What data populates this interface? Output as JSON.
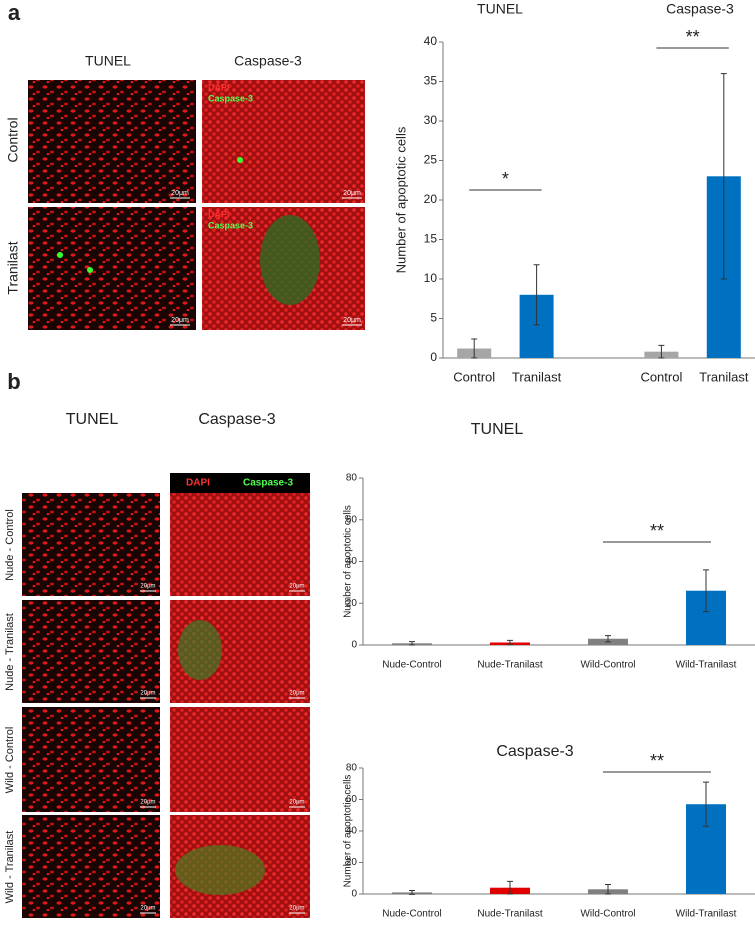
{
  "panel_a": {
    "label": "a",
    "columns": [
      "TUNEL",
      "Caspase-3"
    ],
    "rows": [
      "Control",
      "Tranilast"
    ],
    "legend": [
      "DAPI",
      "Caspase-3"
    ],
    "scale_bar": "20μm"
  },
  "panel_b": {
    "label": "b",
    "columns": [
      "TUNEL",
      "Caspase-3"
    ],
    "rows": [
      "Nude - Control",
      "Nude - Tranilast",
      "Wild - Control",
      "Wild - Tranilast"
    ],
    "legend": [
      "DAPI",
      "Caspase-3"
    ],
    "scale_bar": "20μm"
  },
  "chart_data": [
    {
      "type": "bar",
      "group_labels": [
        "TUNEL",
        "Caspase-3"
      ],
      "y_label": "Number of apoptotic cells",
      "categories": [
        "Control",
        "Tranilast",
        null,
        "Control",
        "Tranilast"
      ],
      "values": [
        1.2,
        8,
        null,
        0.8,
        23
      ],
      "errors": [
        1.2,
        3.8,
        null,
        0.8,
        13
      ],
      "colors": [
        "#a6a6a6",
        "#0070c0",
        null,
        "#a6a6a6",
        "#0070c0"
      ],
      "ylim": [
        0,
        40
      ],
      "yticks": [
        0,
        5,
        10,
        15,
        20,
        25,
        30,
        35,
        40
      ],
      "annotations": [
        "*",
        "**"
      ]
    },
    {
      "type": "bar",
      "title": "TUNEL",
      "y_label": "Number of apoptotic cells",
      "categories": [
        "Nude-Control",
        "Nude-Tranilast",
        "Wild-Control",
        "Wild-Tranilast"
      ],
      "values": [
        0.8,
        1.2,
        3,
        26
      ],
      "errors": [
        0.8,
        1,
        1.5,
        10
      ],
      "colors": [
        "#808080",
        "#e00000",
        "#808080",
        "#0070c0"
      ],
      "ylim": [
        0,
        80
      ],
      "yticks": [
        0,
        20,
        40,
        60,
        80
      ],
      "annotations": [
        "**"
      ]
    },
    {
      "type": "bar",
      "title": "Caspase-3",
      "y_label": "Number of apoptotic cells",
      "categories": [
        "Nude-Control",
        "Nude-Tranilast",
        "Wild-Control",
        "Wild-Tranilast"
      ],
      "values": [
        1,
        4,
        3,
        57
      ],
      "errors": [
        1.2,
        4,
        3,
        14
      ],
      "colors": [
        "#808080",
        "#e00000",
        "#808080",
        "#0070c0"
      ],
      "ylim": [
        0,
        80
      ],
      "yticks": [
        0,
        20,
        40,
        60,
        80
      ],
      "annotations": [
        "**"
      ]
    }
  ]
}
